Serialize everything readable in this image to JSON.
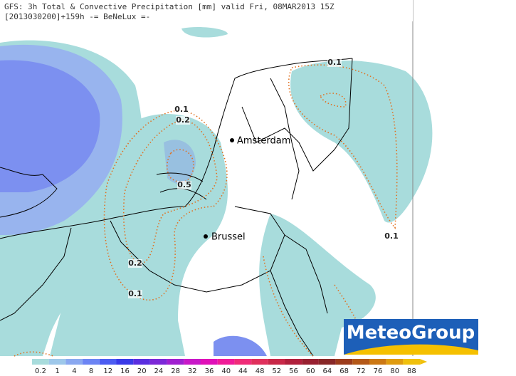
{
  "header": {
    "line1": "GFS: 3h Total & Convective Precipitation [mm] valid Fri, 08MAR2013 15Z",
    "line2": "[2013030200]+159h -= BeNeLux =-"
  },
  "cities": [
    "Amsterdam",
    "Brussel"
  ],
  "contour_labels": [
    0.1,
    0.2,
    0.5,
    0.2,
    0.1,
    0.1,
    0.1
  ],
  "logo": "MeteoGroup",
  "colorbar": {
    "labels": [
      0.2,
      1,
      4,
      8,
      12,
      16,
      20,
      24,
      28,
      32,
      36,
      40,
      44,
      48,
      52,
      56,
      60,
      64,
      68,
      72,
      76,
      80,
      88
    ],
    "colors": [
      "#a8dcdc",
      "#9ec8ea",
      "#8aa8f0",
      "#6c84f4",
      "#4c5cf2",
      "#3a3ae8",
      "#5a2ee0",
      "#7c28d8",
      "#a020d0",
      "#c818c8",
      "#e010b8",
      "#f01c98",
      "#f02c78",
      "#e0305c",
      "#c82848",
      "#b0203c",
      "#982030",
      "#882828",
      "#9c3c1c",
      "#b45818",
      "#cc7814",
      "#e09c10",
      "#f0c00c"
    ]
  }
}
